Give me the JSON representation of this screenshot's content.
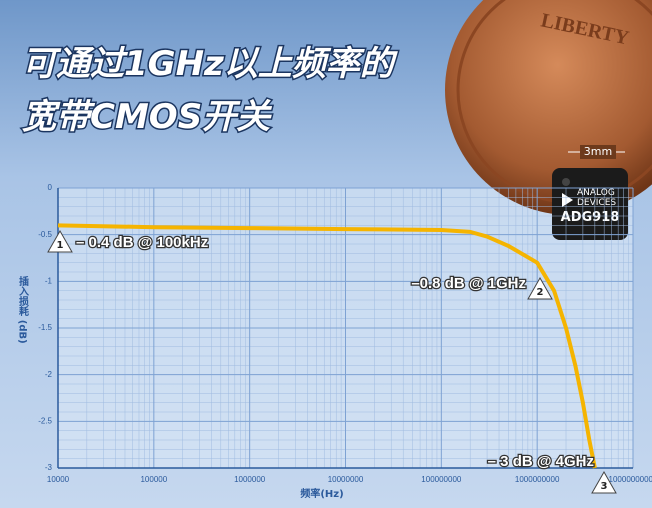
{
  "chart_data": {
    "type": "line",
    "title": [
      "可通过1GHz以上频率的",
      "宽带CMOS开关"
    ],
    "x_label": "频率(Hz)",
    "y_label": "插入损耗 (dB)",
    "log_x": true,
    "grid": true,
    "xlim": [
      10000,
      10000000000
    ],
    "xticks": [
      10000,
      100000,
      1000000,
      10000000,
      100000000,
      1000000000,
      10000000000
    ],
    "ylim": [
      -3,
      0
    ],
    "yticks": [
      0,
      -0.5,
      -1,
      -1.5,
      -2,
      -2.5,
      -3
    ],
    "series": [
      {
        "name": "ADG918",
        "color": "#f5b400",
        "x": [
          10000,
          100000,
          1000000,
          10000000,
          100000000,
          200000000,
          300000000,
          500000000,
          1000000000,
          1500000000,
          2000000000,
          2500000000,
          3000000000,
          3500000000,
          4000000000
        ],
        "values": [
          -0.4,
          -0.42,
          -0.43,
          -0.44,
          -0.45,
          -0.47,
          -0.52,
          -0.62,
          -0.8,
          -1.1,
          -1.5,
          -1.9,
          -2.3,
          -2.7,
          -3
        ]
      }
    ],
    "annotations": [
      {
        "marker": "1",
        "text": "– 0.4 dB @ 100kHz"
      },
      {
        "marker": "2",
        "text": "–0.8 dB @ 1GHz"
      },
      {
        "marker": "3",
        "text": "– 3 dB @ 4GHz"
      }
    ]
  },
  "photo": {
    "coin_text": "LIBERTY",
    "chip_size": "3mm",
    "chip_brand": [
      "ANALOG",
      "DEVICES"
    ],
    "chip_part": "ADG918"
  }
}
